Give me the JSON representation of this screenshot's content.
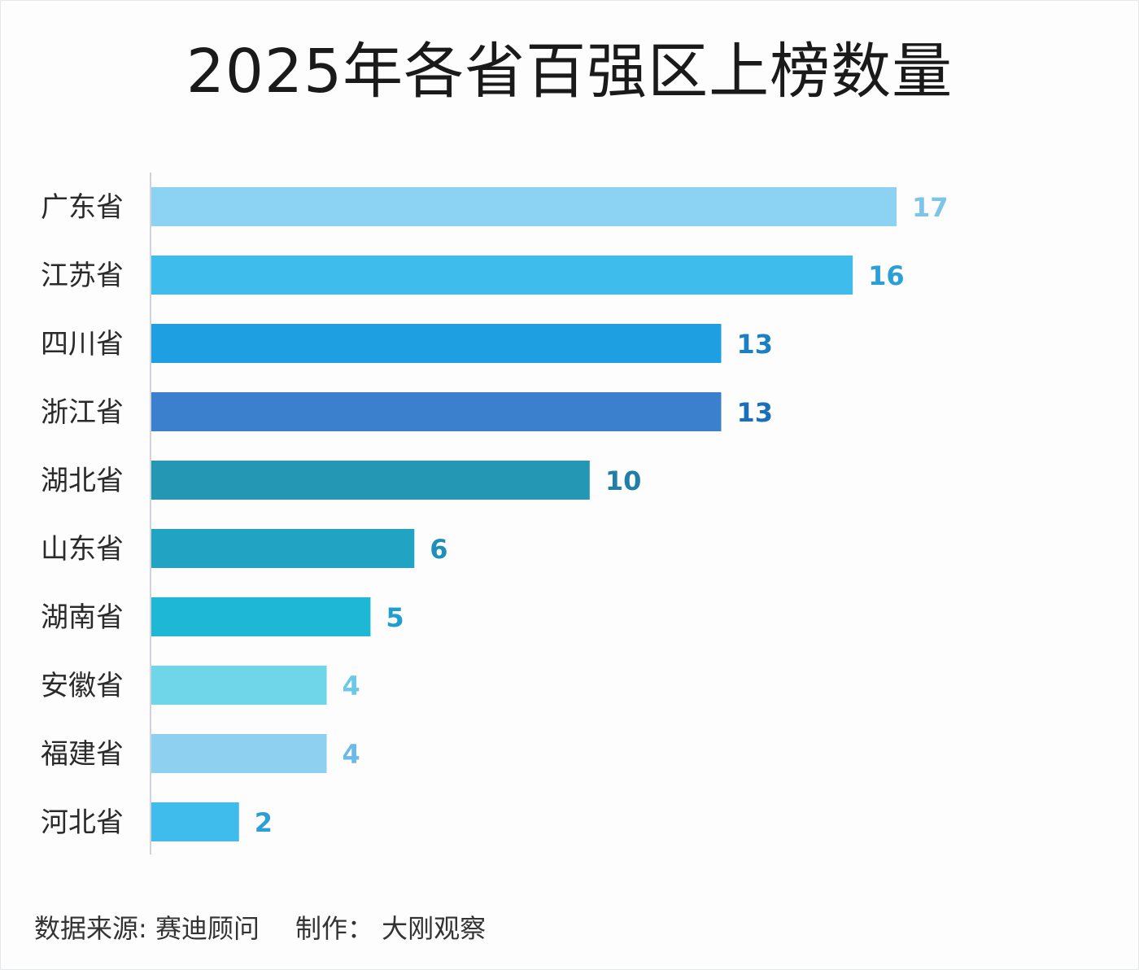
{
  "chart_data": {
    "type": "bar",
    "orientation": "horizontal",
    "title": "2025年各省百强区上榜数量",
    "categories": [
      "广东省",
      "江苏省",
      "四川省",
      "浙江省",
      "湖北省",
      "山东省",
      "湖南省",
      "安徽省",
      "福建省",
      "河北省"
    ],
    "values": [
      17,
      16,
      13,
      13,
      10,
      6,
      5,
      4,
      4,
      2
    ],
    "bar_colors": [
      "#8bd2f3",
      "#3ebcec",
      "#1d9fe2",
      "#3a80cc",
      "#2397b3",
      "#21a3c3",
      "#1eb8d6",
      "#6fd6ea",
      "#8ed0f0",
      "#3fbcec"
    ],
    "label_colors": [
      "#7cc4ea",
      "#2a9fd8",
      "#1a80c4",
      "#1a6fb8",
      "#1f7fa8",
      "#1f8fb8",
      "#1f9ed0",
      "#6cc8e8",
      "#6cb8e6",
      "#2a9fd8"
    ],
    "xlim": [
      0,
      17
    ],
    "grid": false,
    "legend": "none"
  },
  "footer": {
    "source": "数据来源: 赛迪顾问",
    "maker": "制作： 大刚观察"
  }
}
